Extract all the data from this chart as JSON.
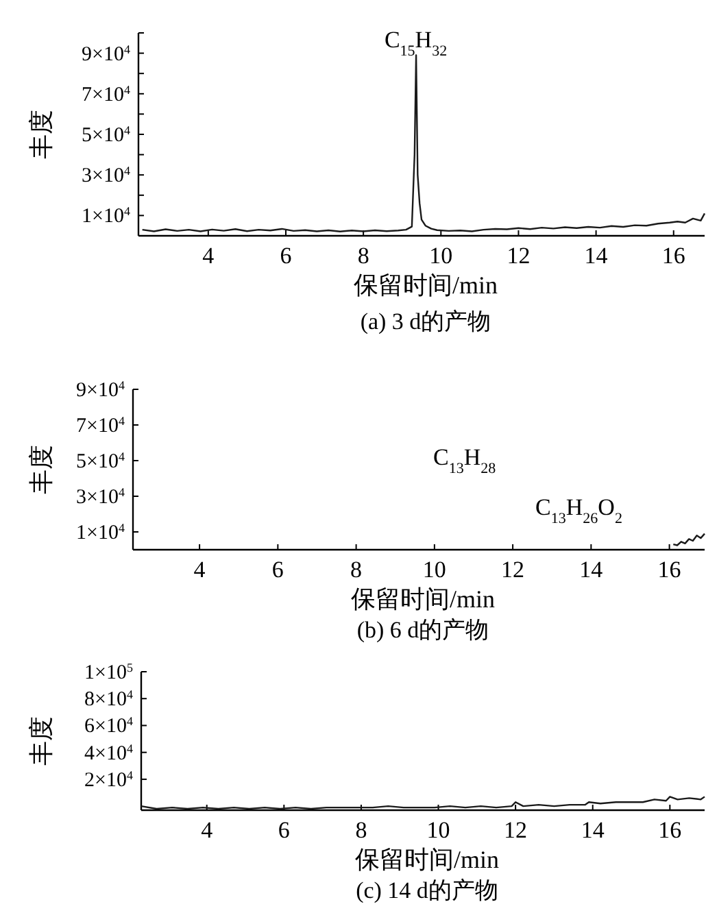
{
  "chart_data": [
    {
      "type": "line",
      "title": "(a) 3 d的产物",
      "xlabel": "保留时间/min",
      "ylabel": "丰度",
      "xlim": [
        2.2,
        16.8
      ],
      "ylim": [
        0,
        100000
      ],
      "xticks": [
        4,
        6,
        8,
        10,
        12,
        14,
        16
      ],
      "yticks": [
        {
          "value": 10000,
          "label": "1×10$^{4}$"
        },
        {
          "value": 20000,
          "label": null
        },
        {
          "value": 30000,
          "label": "3×10$^{4}$"
        },
        {
          "value": 40000,
          "label": null
        },
        {
          "value": 50000,
          "label": "5×10$^{4}$"
        },
        {
          "value": 60000,
          "label": null
        },
        {
          "value": 70000,
          "label": "7×10$^{4}$"
        },
        {
          "value": 80000,
          "label": null
        },
        {
          "value": 90000,
          "label": "9×10$^{4}$"
        }
      ],
      "series": [
        {
          "color": "#1a1a1a",
          "x": [
            2.3,
            2.6,
            2.9,
            3.2,
            3.5,
            3.8,
            4.1,
            4.4,
            4.7,
            5.0,
            5.3,
            5.6,
            5.9,
            6.2,
            6.5,
            6.8,
            7.1,
            7.4,
            7.7,
            8.0,
            8.3,
            8.6,
            8.9,
            9.1,
            9.25,
            9.32,
            9.36,
            9.4,
            9.45,
            9.5,
            9.6,
            9.75,
            9.9,
            10.2,
            10.5,
            10.8,
            11.1,
            11.4,
            11.7,
            12.0,
            12.3,
            12.6,
            12.9,
            13.2,
            13.5,
            13.8,
            14.1,
            14.4,
            14.7,
            15.0,
            15.3,
            15.6,
            15.9,
            16.1,
            16.3,
            16.5,
            16.7,
            16.8
          ],
          "values": [
            3000,
            2200,
            3200,
            2400,
            3000,
            2200,
            3100,
            2500,
            3300,
            2300,
            3000,
            2600,
            3400,
            2400,
            2800,
            2200,
            2700,
            2100,
            2600,
            2200,
            2700,
            2300,
            2600,
            3000,
            4500,
            40000,
            89000,
            30000,
            16000,
            8000,
            5000,
            3500,
            2800,
            2400,
            2600,
            2200,
            3000,
            3400,
            3200,
            3800,
            3300,
            4000,
            3600,
            4200,
            3800,
            4400,
            4000,
            4800,
            4400,
            5200,
            5000,
            6000,
            6500,
            7000,
            6500,
            8500,
            7500,
            11000
          ]
        }
      ],
      "annotations": [
        {
          "text": "C$_{15}$H$_{32}$",
          "x": 9.35,
          "y": 89000
        }
      ]
    },
    {
      "type": "line",
      "title": "(b) 6 d的产物",
      "xlabel": "保留时间/min",
      "ylabel": "丰度",
      "xlim": [
        2.3,
        16.9
      ],
      "ylim": [
        0,
        90000
      ],
      "xticks": [
        4,
        6,
        8,
        10,
        12,
        14,
        16
      ],
      "yticks": [
        {
          "value": 10000,
          "label": "1×10$^{4}$"
        },
        {
          "value": 30000,
          "label": "3×10$^{4}$"
        },
        {
          "value": 50000,
          "label": "5×10$^{4}$"
        },
        {
          "value": 70000,
          "label": "7×10$^{4}$"
        },
        {
          "value": 90000,
          "label": "9×10$^{4}$"
        }
      ],
      "series": [
        {
          "color": "#1a1a1a",
          "x": [
            16.1,
            16.2,
            16.3,
            16.4,
            16.5,
            16.6,
            16.7,
            16.8,
            16.9
          ],
          "values": [
            3000,
            2500,
            4500,
            3500,
            6000,
            5000,
            8000,
            6500,
            9000
          ]
        }
      ],
      "annotations": [
        "C$_{13}$H$_{28}$",
        "C$_{13}$H$_{26}$O$_{2}$"
      ]
    },
    {
      "type": "line",
      "title": "(c) 14 d的产物",
      "xlabel": "保留时间/min",
      "ylabel": "丰度",
      "xlim": [
        2.3,
        16.9
      ],
      "ylim": [
        -3000,
        100000
      ],
      "xticks": [
        4,
        6,
        8,
        10,
        12,
        14,
        16
      ],
      "yticks": [
        {
          "value": 20000,
          "label": "2×10$^{4}$"
        },
        {
          "value": 40000,
          "label": "4×10$^{4}$"
        },
        {
          "value": 60000,
          "label": "6×10$^{4}$"
        },
        {
          "value": 80000,
          "label": "8×10$^{4}$"
        },
        {
          "value": 100000,
          "label": "1×10$^{5}$"
        }
      ],
      "series": [
        {
          "color": "#1a1a1a",
          "x": [
            2.3,
            2.7,
            3.1,
            3.5,
            3.9,
            4.3,
            4.7,
            5.1,
            5.5,
            5.9,
            6.3,
            6.7,
            7.1,
            7.5,
            7.9,
            8.3,
            8.7,
            9.1,
            9.5,
            9.9,
            10.3,
            10.7,
            11.1,
            11.5,
            11.9,
            12.0,
            12.2,
            12.6,
            13.0,
            13.4,
            13.8,
            13.9,
            14.2,
            14.6,
            15.0,
            15.3,
            15.6,
            15.9,
            16.0,
            16.2,
            16.5,
            16.8,
            16.9
          ],
          "values": [
            0,
            -2000,
            -1000,
            -2000,
            -1000,
            -2000,
            -1000,
            -2000,
            -1000,
            -2000,
            -1000,
            -2000,
            -1000,
            -1000,
            -1000,
            -1000,
            0,
            -1000,
            -1000,
            -1000,
            0,
            -1000,
            0,
            -1000,
            0,
            3000,
            0,
            1000,
            0,
            1000,
            1000,
            3000,
            2000,
            3000,
            3000,
            3000,
            5000,
            4000,
            7000,
            5000,
            6000,
            5000,
            7000
          ]
        }
      ]
    }
  ]
}
